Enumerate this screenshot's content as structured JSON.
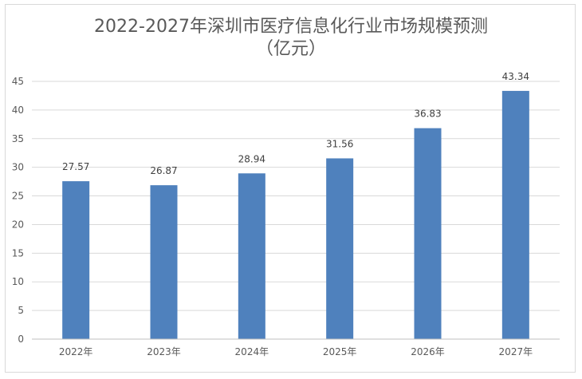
{
  "chart_data": {
    "type": "bar",
    "title": "2022-2027年深圳市医疗信息化行业市场规模预测",
    "subtitle": "（亿元）",
    "categories": [
      "2022年",
      "2023年",
      "2024年",
      "2025年",
      "2026年",
      "2027年"
    ],
    "values": [
      27.57,
      26.87,
      28.94,
      31.56,
      36.83,
      43.34
    ],
    "data_labels": [
      "27.57",
      "26.87",
      "28.94",
      "31.56",
      "36.83",
      "43.34"
    ],
    "xlabel": "",
    "ylabel": "",
    "ylim": [
      0,
      45
    ],
    "yticks": [
      0,
      5,
      10,
      15,
      20,
      25,
      30,
      35,
      40,
      45
    ],
    "grid": true,
    "legend": "none",
    "bar_color": "#4f81bd",
    "grid_color": "#d9d9d9"
  }
}
